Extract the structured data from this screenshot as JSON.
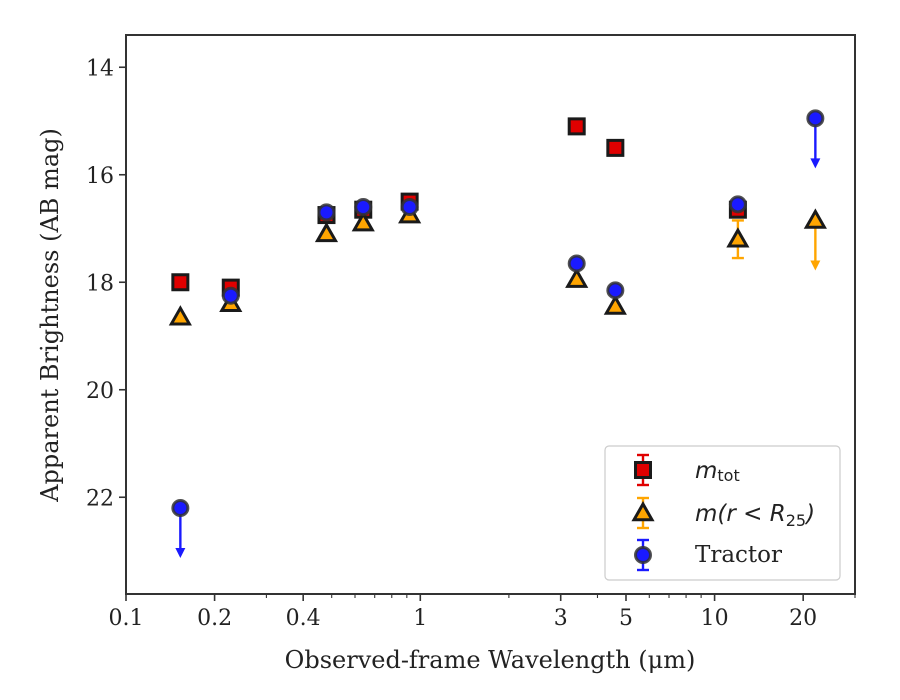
{
  "chart_data": {
    "type": "scatter",
    "xlabel": "Observed-frame Wavelength (μm)",
    "ylabel": "Apparent Brightness (AB mag)",
    "xscale": "log",
    "xlim": [
      0.1,
      30
    ],
    "ylim": [
      23.8,
      13.4
    ],
    "y_inverted": true,
    "xticks": [
      {
        "value": 0.1,
        "label": "0.1"
      },
      {
        "value": 0.2,
        "label": "0.2"
      },
      {
        "value": 0.4,
        "label": "0.4"
      },
      {
        "value": 1,
        "label": "1"
      },
      {
        "value": 3,
        "label": "3"
      },
      {
        "value": 5,
        "label": "5"
      },
      {
        "value": 10,
        "label": "10"
      },
      {
        "value": 20,
        "label": "20"
      }
    ],
    "yticks": [
      {
        "value": 14,
        "label": "14"
      },
      {
        "value": 16,
        "label": "16"
      },
      {
        "value": 18,
        "label": "18"
      },
      {
        "value": 20,
        "label": "20"
      },
      {
        "value": 22,
        "label": "22"
      }
    ],
    "legend_position": "lower-right",
    "series": [
      {
        "name": "m_tot",
        "legend_main": "m",
        "legend_sub": "tot",
        "marker": "square",
        "color": "#e00000",
        "edge": "#1a1a1a",
        "points": [
          {
            "x": 0.153,
            "y": 18.0
          },
          {
            "x": 0.227,
            "y": 18.1
          },
          {
            "x": 0.48,
            "y": 16.75
          },
          {
            "x": 0.64,
            "y": 16.65
          },
          {
            "x": 0.92,
            "y": 16.5
          },
          {
            "x": 3.4,
            "y": 15.1
          },
          {
            "x": 4.6,
            "y": 15.5
          },
          {
            "x": 12.0,
            "y": 16.65
          }
        ]
      },
      {
        "name": "m(r < R_25)",
        "legend_main": "m(r < R",
        "legend_sub": "25",
        "legend_close": ")",
        "marker": "triangle",
        "color": "#ffa500",
        "edge": "#1a1a1a",
        "points": [
          {
            "x": 0.153,
            "y": 18.65
          },
          {
            "x": 0.227,
            "y": 18.4
          },
          {
            "x": 0.48,
            "y": 17.1
          },
          {
            "x": 0.64,
            "y": 16.9
          },
          {
            "x": 0.92,
            "y": 16.75
          },
          {
            "x": 3.4,
            "y": 17.95
          },
          {
            "x": 4.6,
            "y": 18.45
          },
          {
            "x": 12.0,
            "y": 17.2,
            "yerr": 0.35
          },
          {
            "x": 22.0,
            "y": 16.85,
            "upper_limit": true
          }
        ]
      },
      {
        "name": "Tractor",
        "legend_main": "Tractor",
        "marker": "circle",
        "color": "#1a1aff",
        "edge": "#333333",
        "points": [
          {
            "x": 0.153,
            "y": 22.2,
            "upper_limit": true
          },
          {
            "x": 0.227,
            "y": 18.25
          },
          {
            "x": 0.48,
            "y": 16.7
          },
          {
            "x": 0.64,
            "y": 16.6
          },
          {
            "x": 0.92,
            "y": 16.6
          },
          {
            "x": 3.4,
            "y": 17.65
          },
          {
            "x": 4.6,
            "y": 18.15
          },
          {
            "x": 12.0,
            "y": 16.55
          },
          {
            "x": 22.0,
            "y": 14.95,
            "upper_limit": true
          }
        ]
      }
    ]
  }
}
